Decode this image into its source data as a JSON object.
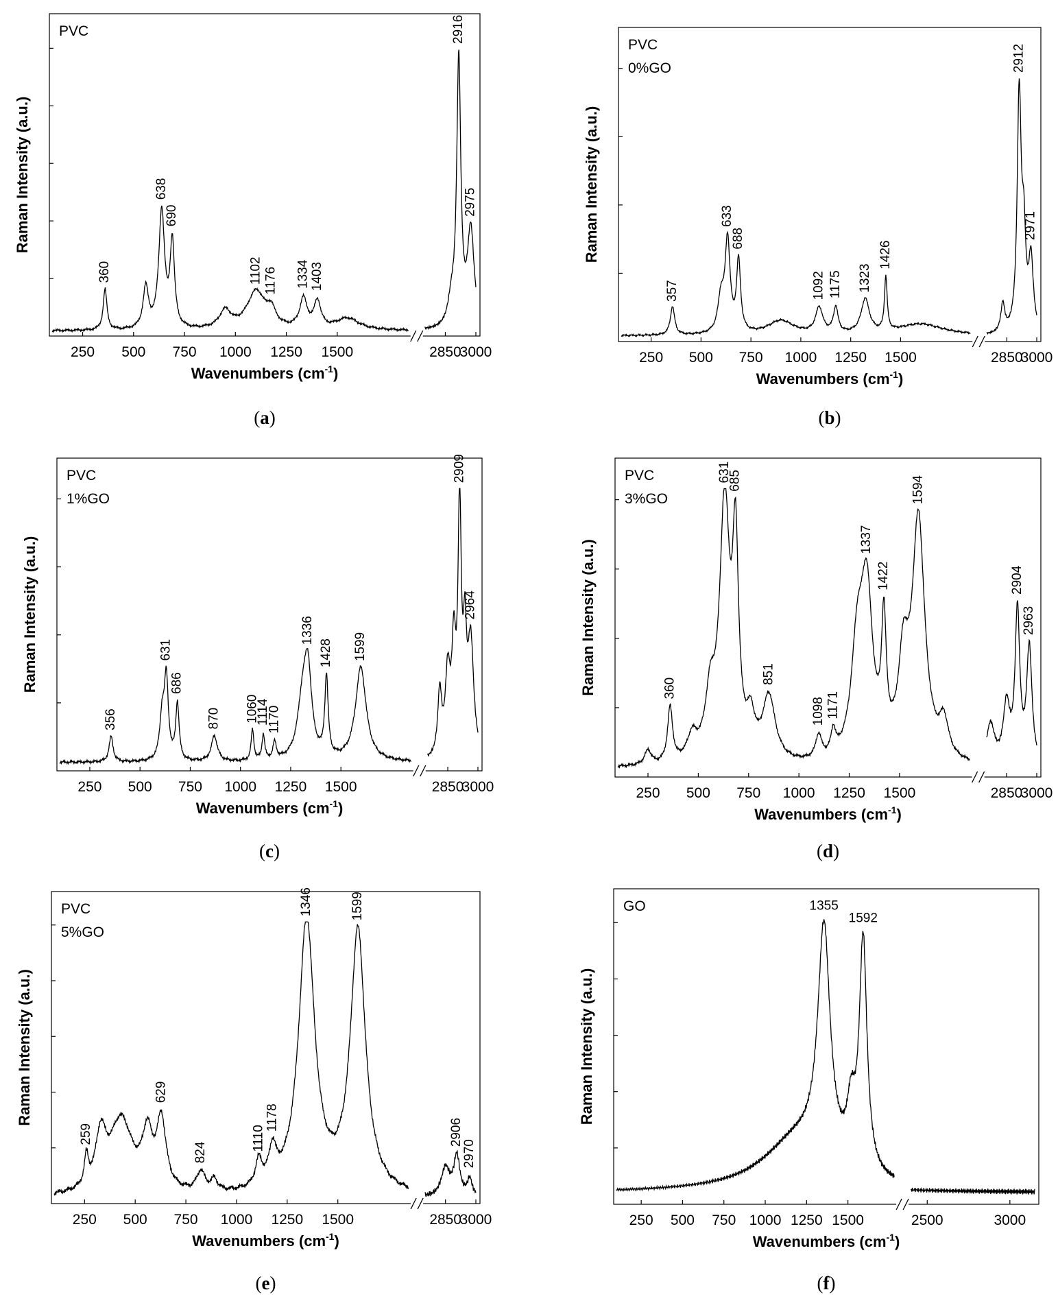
{
  "figure": {
    "x_axis_label": "Wavenumbers (cm",
    "x_axis_superscript": "-1",
    "x_axis_close": ")",
    "y_axis_label": "Raman Intensity (a.u.)"
  },
  "chart_data": [
    {
      "type": "line",
      "caption_open": "(",
      "caption": "a",
      "caption_close": ")",
      "sample_lines": [
        "PVC"
      ],
      "xlabel": "Wavenumbers (cm-1)",
      "ylabel": "Raman Intensity (a.u.)",
      "axis_break": true,
      "x_segments": [
        [
          100,
          1850
        ],
        [
          2750,
          3000
        ]
      ],
      "x_ticks": [
        250,
        500,
        750,
        1000,
        1250,
        1500,
        2850,
        3000
      ],
      "y_range": [
        0,
        1
      ],
      "y_tick_count": 5,
      "label_rotation": -90,
      "base": 0.008,
      "noise": 0.005,
      "peaks": [
        {
          "x": 360,
          "label": "360",
          "h": 0.14,
          "w": 11
        },
        {
          "x": 560,
          "h": 0.14,
          "w": 16
        },
        {
          "x": 638,
          "label": "638",
          "h": 0.4,
          "w": 17
        },
        {
          "x": 690,
          "label": "690",
          "h": 0.29,
          "w": 13
        },
        {
          "x": 950,
          "h": 0.06,
          "w": 35
        },
        {
          "x": 1102,
          "label": "1102",
          "h": 0.13,
          "w": 55
        },
        {
          "x": 1176,
          "label": "1176",
          "h": 0.05,
          "w": 25
        },
        {
          "x": 1334,
          "label": "1334",
          "h": 0.1,
          "w": 22
        },
        {
          "x": 1403,
          "label": "1403",
          "h": 0.09,
          "w": 20
        },
        {
          "x": 1550,
          "h": 0.04,
          "w": 70
        },
        {
          "x": 2916,
          "label": "2916",
          "h": 0.9,
          "w": 12
        },
        {
          "x": 2880,
          "h": 0.08,
          "w": 20
        },
        {
          "x": 2975,
          "label": "2975",
          "h": 0.33,
          "w": 20
        }
      ]
    },
    {
      "type": "line",
      "caption_open": "(",
      "caption": "b",
      "caption_close": ")",
      "sample_lines": [
        "PVC",
        "0%GO"
      ],
      "xlabel": "Wavenumbers (cm-1)",
      "ylabel": "Raman Intensity (a.u.)",
      "axis_break": true,
      "x_segments": [
        [
          100,
          1850
        ],
        [
          2750,
          3000
        ]
      ],
      "x_ticks": [
        250,
        500,
        750,
        1000,
        1250,
        1500,
        2850,
        3000
      ],
      "y_range": [
        0,
        1
      ],
      "y_tick_count": 4,
      "label_rotation": -90,
      "base": 0.01,
      "noise": 0.004,
      "peaks": [
        {
          "x": 357,
          "label": "357",
          "h": 0.1,
          "w": 13
        },
        {
          "x": 600,
          "h": 0.12,
          "w": 18
        },
        {
          "x": 633,
          "label": "633",
          "h": 0.32,
          "w": 15
        },
        {
          "x": 688,
          "label": "688",
          "h": 0.25,
          "w": 12
        },
        {
          "x": 900,
          "h": 0.05,
          "w": 80
        },
        {
          "x": 1092,
          "label": "1092",
          "h": 0.09,
          "w": 22
        },
        {
          "x": 1175,
          "label": "1175",
          "h": 0.09,
          "w": 14
        },
        {
          "x": 1323,
          "label": "1323",
          "h": 0.12,
          "w": 25
        },
        {
          "x": 1426,
          "label": "1426",
          "h": 0.19,
          "w": 8
        },
        {
          "x": 1600,
          "h": 0.04,
          "w": 140
        },
        {
          "x": 2830,
          "h": 0.1,
          "w": 12
        },
        {
          "x": 2912,
          "label": "2912",
          "h": 0.82,
          "w": 12
        },
        {
          "x": 2935,
          "h": 0.3,
          "w": 12
        },
        {
          "x": 2971,
          "label": "2971",
          "h": 0.25,
          "w": 14
        }
      ]
    },
    {
      "type": "line",
      "caption_open": "(",
      "caption": "c",
      "caption_close": ")",
      "sample_lines": [
        "PVC",
        "1%GO"
      ],
      "xlabel": "Wavenumbers (cm-1)",
      "ylabel": "Raman Intensity (a.u.)",
      "axis_break": true,
      "x_segments": [
        [
          100,
          1850
        ],
        [
          2750,
          3000
        ]
      ],
      "x_ticks": [
        250,
        500,
        750,
        1000,
        1250,
        1500,
        2850,
        3000
      ],
      "y_range": [
        0,
        1
      ],
      "y_tick_count": 4,
      "label_rotation": -90,
      "base": 0.02,
      "noise": 0.006,
      "peaks": [
        {
          "x": 356,
          "label": "356",
          "h": 0.09,
          "w": 12
        },
        {
          "x": 610,
          "h": 0.15,
          "w": 14
        },
        {
          "x": 631,
          "label": "631",
          "h": 0.28,
          "w": 12
        },
        {
          "x": 686,
          "label": "686",
          "h": 0.2,
          "w": 10
        },
        {
          "x": 870,
          "label": "870",
          "h": 0.09,
          "w": 18
        },
        {
          "x": 1060,
          "label": "1060",
          "h": 0.11,
          "w": 8
        },
        {
          "x": 1114,
          "label": "1114",
          "h": 0.09,
          "w": 8
        },
        {
          "x": 1170,
          "label": "1170",
          "h": 0.06,
          "w": 10
        },
        {
          "x": 1310,
          "h": 0.2,
          "w": 30
        },
        {
          "x": 1336,
          "label": "1336",
          "h": 0.27,
          "w": 22
        },
        {
          "x": 1428,
          "label": "1428",
          "h": 0.28,
          "w": 10
        },
        {
          "x": 1599,
          "label": "1599",
          "h": 0.33,
          "w": 32
        },
        {
          "x": 2810,
          "h": 0.22,
          "w": 12
        },
        {
          "x": 2850,
          "h": 0.28,
          "w": 15
        },
        {
          "x": 2880,
          "h": 0.35,
          "w": 12
        },
        {
          "x": 2909,
          "label": "2909",
          "h": 0.84,
          "w": 10
        },
        {
          "x": 2935,
          "h": 0.35,
          "w": 10
        },
        {
          "x": 2964,
          "label": "2964",
          "h": 0.4,
          "w": 18
        }
      ]
    },
    {
      "type": "line",
      "caption_open": "(",
      "caption": "d",
      "caption_close": ")",
      "sample_lines": [
        "PVC",
        "3%GO"
      ],
      "xlabel": "Wavenumbers (cm-1)",
      "ylabel": "Raman Intensity (a.u.)",
      "axis_break": true,
      "x_segments": [
        [
          100,
          1850
        ],
        [
          2750,
          3000
        ]
      ],
      "x_ticks": [
        250,
        500,
        750,
        1000,
        1250,
        1500,
        2850,
        3000
      ],
      "y_range": [
        0,
        1
      ],
      "y_tick_count": 4,
      "label_rotation": -90,
      "base": 0.02,
      "noise": 0.006,
      "peaks": [
        {
          "x": 250,
          "h": 0.05,
          "w": 20
        },
        {
          "x": 360,
          "label": "360",
          "h": 0.19,
          "w": 15
        },
        {
          "x": 470,
          "h": 0.08,
          "w": 30
        },
        {
          "x": 560,
          "h": 0.2,
          "w": 30
        },
        {
          "x": 631,
          "label": "631",
          "h": 0.87,
          "w": 30
        },
        {
          "x": 685,
          "label": "685",
          "h": 0.68,
          "w": 18
        },
        {
          "x": 760,
          "h": 0.12,
          "w": 25
        },
        {
          "x": 851,
          "label": "851",
          "h": 0.22,
          "w": 38
        },
        {
          "x": 1098,
          "label": "1098",
          "h": 0.08,
          "w": 18
        },
        {
          "x": 1171,
          "label": "1171",
          "h": 0.08,
          "w": 14
        },
        {
          "x": 1290,
          "h": 0.35,
          "w": 35
        },
        {
          "x": 1337,
          "label": "1337",
          "h": 0.55,
          "w": 35
        },
        {
          "x": 1422,
          "label": "1422",
          "h": 0.42,
          "w": 14
        },
        {
          "x": 1520,
          "h": 0.3,
          "w": 30
        },
        {
          "x": 1594,
          "label": "1594",
          "h": 0.82,
          "w": 38
        },
        {
          "x": 1720,
          "h": 0.12,
          "w": 28
        },
        {
          "x": 2770,
          "h": 0.14,
          "w": 25
        },
        {
          "x": 2850,
          "h": 0.2,
          "w": 20
        },
        {
          "x": 2904,
          "label": "2904",
          "h": 0.52,
          "w": 14
        },
        {
          "x": 2963,
          "label": "2963",
          "h": 0.4,
          "w": 16
        }
      ]
    },
    {
      "type": "line",
      "caption_open": "(",
      "caption": "e",
      "caption_close": ")",
      "sample_lines": [
        "PVC",
        "5%GO"
      ],
      "xlabel": "Wavenumbers (cm-1)",
      "ylabel": "Raman Intensity (a.u.)",
      "axis_break": true,
      "x_segments": [
        [
          100,
          1850
        ],
        [
          2750,
          3000
        ]
      ],
      "x_ticks": [
        250,
        500,
        750,
        1000,
        1250,
        1500,
        2850,
        3000
      ],
      "y_range": [
        0,
        1
      ],
      "y_tick_count": 5,
      "label_rotation": -90,
      "base": 0.01,
      "noise": 0.01,
      "peaks": [
        {
          "x": 259,
          "label": "259",
          "h": 0.1,
          "w": 12
        },
        {
          "x": 330,
          "h": 0.18,
          "w": 30
        },
        {
          "x": 430,
          "h": 0.26,
          "w": 70
        },
        {
          "x": 560,
          "h": 0.18,
          "w": 30
        },
        {
          "x": 629,
          "label": "629",
          "h": 0.24,
          "w": 28
        },
        {
          "x": 824,
          "label": "824",
          "h": 0.07,
          "w": 25
        },
        {
          "x": 890,
          "h": 0.04,
          "w": 20
        },
        {
          "x": 1110,
          "label": "1110",
          "h": 0.09,
          "w": 20
        },
        {
          "x": 1178,
          "label": "1178",
          "h": 0.12,
          "w": 22
        },
        {
          "x": 1346,
          "label": "1346",
          "h": 0.96,
          "w": 48
        },
        {
          "x": 1599,
          "label": "1599",
          "h": 0.92,
          "w": 45
        },
        {
          "x": 2850,
          "h": 0.1,
          "w": 25
        },
        {
          "x": 2906,
          "label": "2906",
          "h": 0.14,
          "w": 18
        },
        {
          "x": 2970,
          "label": "2970",
          "h": 0.06,
          "w": 14
        }
      ]
    },
    {
      "type": "line",
      "caption_open": "(",
      "caption": "f",
      "caption_close": ")",
      "sample_lines": [
        "GO"
      ],
      "xlabel": "Wavenumbers (cm-1)",
      "ylabel": "Raman Intensity (a.u.)",
      "axis_break": true,
      "x_segments": [
        [
          100,
          1780
        ],
        [
          2400,
          3150
        ]
      ],
      "x_ticks": [
        250,
        500,
        750,
        1000,
        1250,
        1500,
        2500,
        3000
      ],
      "y_range": [
        0,
        1
      ],
      "y_tick_count": 5,
      "label_rotation": 0,
      "base": 0.03,
      "noise": 0.01,
      "peaks": [
        {
          "x": 1200,
          "h": 0.18,
          "w": 260
        },
        {
          "x": 1355,
          "label": "1355",
          "h": 0.8,
          "w": 45
        },
        {
          "x": 1520,
          "h": 0.18,
          "w": 30
        },
        {
          "x": 1592,
          "label": "1592",
          "h": 0.8,
          "w": 28
        }
      ]
    }
  ]
}
